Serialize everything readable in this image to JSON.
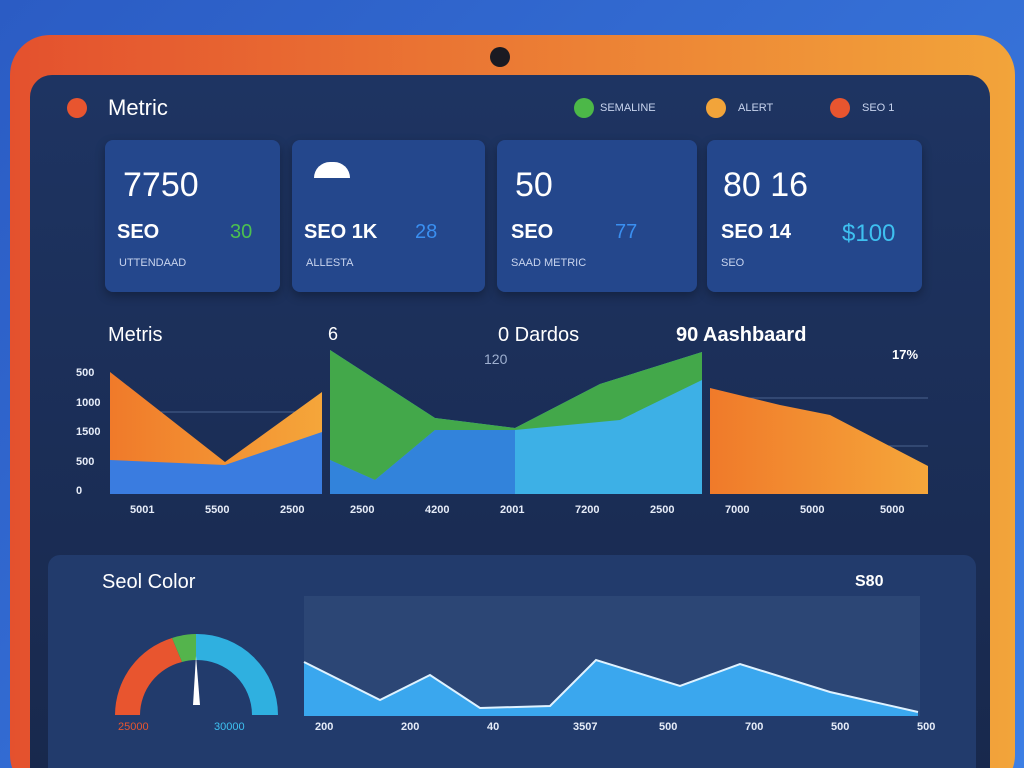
{
  "header": {
    "title": "Metric",
    "legend": [
      "SEMALINE",
      "ALERT",
      "SEO 1"
    ]
  },
  "cards": [
    {
      "value": "7750",
      "label": "SEO",
      "delta": "30",
      "sub": "UTTENDAAD"
    },
    {
      "value": "",
      "label": "SEO 1K",
      "delta": "28",
      "sub": "ALLESTA"
    },
    {
      "value": "50",
      "label": "SEO",
      "delta": "77",
      "sub": "SAAD METRIC"
    },
    {
      "value": "80 16",
      "label": "SEO 14",
      "delta": "$100",
      "sub": "SEO"
    }
  ],
  "middle": {
    "title": "Metris",
    "labels": [
      "6",
      "0 Dardos",
      "90 Aashbaard",
      "120",
      "17%"
    ],
    "y_labels": [
      "500",
      "1000",
      "1500",
      "500",
      "0"
    ],
    "x_labels": [
      "5001",
      "5500",
      "2500",
      "2500",
      "4200",
      "2001",
      "7200",
      "2500",
      "7000",
      "5000",
      "5000"
    ]
  },
  "bottom": {
    "title": "Seol Color",
    "badge": "S80",
    "gauge_labels": [
      "25000",
      "30000"
    ],
    "x_labels": [
      "200",
      "200",
      "40",
      "3507",
      "500",
      "700",
      "500",
      "500"
    ]
  }
}
